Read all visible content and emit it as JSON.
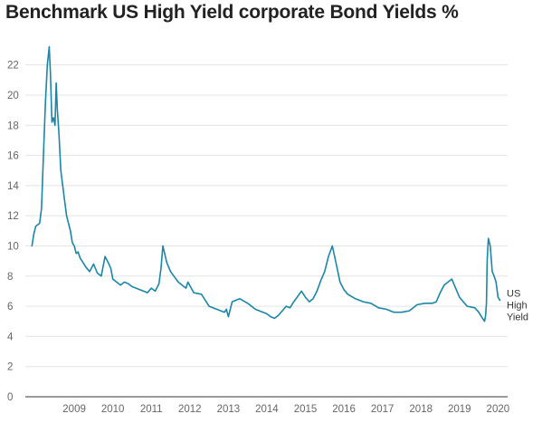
{
  "chart_data": {
    "type": "line",
    "title": "Benchmark US High Yield corporate Bond Yields %",
    "xlabel": "",
    "ylabel": "",
    "ylim": [
      0,
      23
    ],
    "xlim": [
      2008.3,
      2020.75
    ],
    "grid": true,
    "y_ticks": [
      0,
      2,
      4,
      6,
      8,
      10,
      12,
      14,
      16,
      18,
      20,
      22
    ],
    "x_ticks": [
      "2009",
      "2010",
      "2011",
      "2012",
      "2013",
      "2014",
      "2015",
      "2016",
      "2017",
      "2018",
      "2019",
      "2020"
    ],
    "series": [
      {
        "name": "US High Yield",
        "color": "#1a86a8",
        "x": [
          2008.4,
          2008.45,
          2008.5,
          2008.6,
          2008.65,
          2008.7,
          2008.75,
          2008.8,
          2008.85,
          2008.88,
          2008.92,
          2008.96,
          2009.0,
          2009.03,
          2009.06,
          2009.1,
          2009.15,
          2009.2,
          2009.25,
          2009.3,
          2009.35,
          2009.4,
          2009.45,
          2009.5,
          2009.55,
          2009.6,
          2009.65,
          2009.7,
          2009.8,
          2009.9,
          2010.0,
          2010.1,
          2010.2,
          2010.3,
          2010.4,
          2010.45,
          2010.5,
          2010.6,
          2010.7,
          2010.8,
          2010.9,
          2011.0,
          2011.2,
          2011.4,
          2011.5,
          2011.6,
          2011.7,
          2011.75,
          2011.8,
          2011.9,
          2012.0,
          2012.2,
          2012.4,
          2012.45,
          2012.6,
          2012.8,
          2013.0,
          2013.2,
          2013.4,
          2013.45,
          2013.5,
          2013.6,
          2013.8,
          2014.0,
          2014.2,
          2014.4,
          2014.5,
          2014.6,
          2014.7,
          2014.8,
          2014.9,
          2015.0,
          2015.1,
          2015.2,
          2015.4,
          2015.5,
          2015.6,
          2015.7,
          2015.8,
          2015.9,
          2016.0,
          2016.05,
          2016.1,
          2016.2,
          2016.3,
          2016.4,
          2016.5,
          2016.6,
          2016.8,
          2017.0,
          2017.2,
          2017.4,
          2017.6,
          2017.8,
          2018.0,
          2018.2,
          2018.4,
          2018.6,
          2018.8,
          2018.9,
          2019.0,
          2019.1,
          2019.3,
          2019.5,
          2019.7,
          2019.9,
          2020.0,
          2020.05,
          2020.1,
          2020.15,
          2020.18,
          2020.2,
          2020.22,
          2020.25,
          2020.3,
          2020.35,
          2020.4,
          2020.45,
          2020.5,
          2020.55
        ],
        "values": [
          10.0,
          10.8,
          11.3,
          11.5,
          12.5,
          16.0,
          19.5,
          22.0,
          23.2,
          21.5,
          18.2,
          18.5,
          18.0,
          20.8,
          19.0,
          17.5,
          15.0,
          14.0,
          13.0,
          12.0,
          11.5,
          11.0,
          10.2,
          10.0,
          9.5,
          9.6,
          9.2,
          9.0,
          8.6,
          8.3,
          8.8,
          8.2,
          8.0,
          9.3,
          8.8,
          8.5,
          7.8,
          7.6,
          7.4,
          7.6,
          7.5,
          7.3,
          7.1,
          6.9,
          7.2,
          7.0,
          7.5,
          8.5,
          10.0,
          8.9,
          8.3,
          7.6,
          7.2,
          7.6,
          6.9,
          6.8,
          6.0,
          5.8,
          5.6,
          5.8,
          5.3,
          6.3,
          6.5,
          6.2,
          5.8,
          5.6,
          5.5,
          5.3,
          5.2,
          5.4,
          5.7,
          6.0,
          5.9,
          6.3,
          7.0,
          6.6,
          6.3,
          6.5,
          7.0,
          7.7,
          8.3,
          8.8,
          9.3,
          10.0,
          8.8,
          7.6,
          7.1,
          6.8,
          6.5,
          6.3,
          6.2,
          5.9,
          5.8,
          5.6,
          5.6,
          5.7,
          6.1,
          6.2,
          6.2,
          6.3,
          6.9,
          7.4,
          7.8,
          6.6,
          6.0,
          5.9,
          5.6,
          5.4,
          5.2,
          5.0,
          5.4,
          6.2,
          9.0,
          10.5,
          10.0,
          8.3,
          8.0,
          7.6,
          6.6,
          6.4
        ]
      }
    ]
  }
}
